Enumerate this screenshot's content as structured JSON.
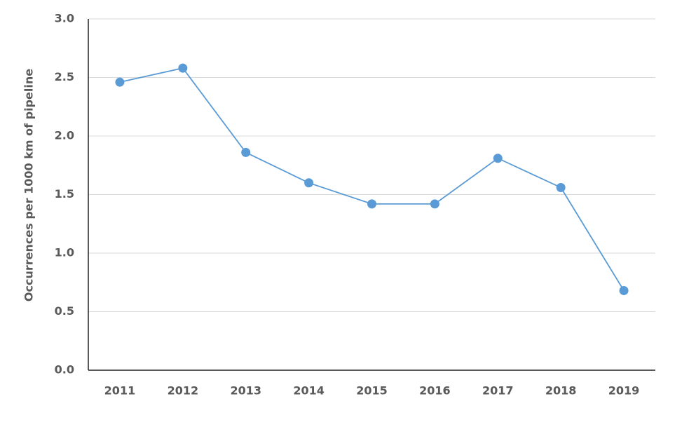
{
  "chart_data": {
    "type": "line",
    "y_label": "Occurrences per 1000 km of pipeline",
    "categories": [
      "2011",
      "2012",
      "2013",
      "2014",
      "2015",
      "2016",
      "2017",
      "2018",
      "2019"
    ],
    "values": [
      2.46,
      2.58,
      1.86,
      1.6,
      1.42,
      1.42,
      1.81,
      1.56,
      0.68
    ],
    "color": "#5b9bd5",
    "ylim": [
      0,
      3
    ],
    "yticks": [
      {
        "value": 0,
        "label": "0.0"
      },
      0.5,
      {
        "value": 1,
        "label": "1.0"
      },
      1.5,
      {
        "value": 2,
        "label": "2.0"
      },
      2.5,
      {
        "value": 3,
        "label": "3.0"
      }
    ],
    "grid": true
  }
}
